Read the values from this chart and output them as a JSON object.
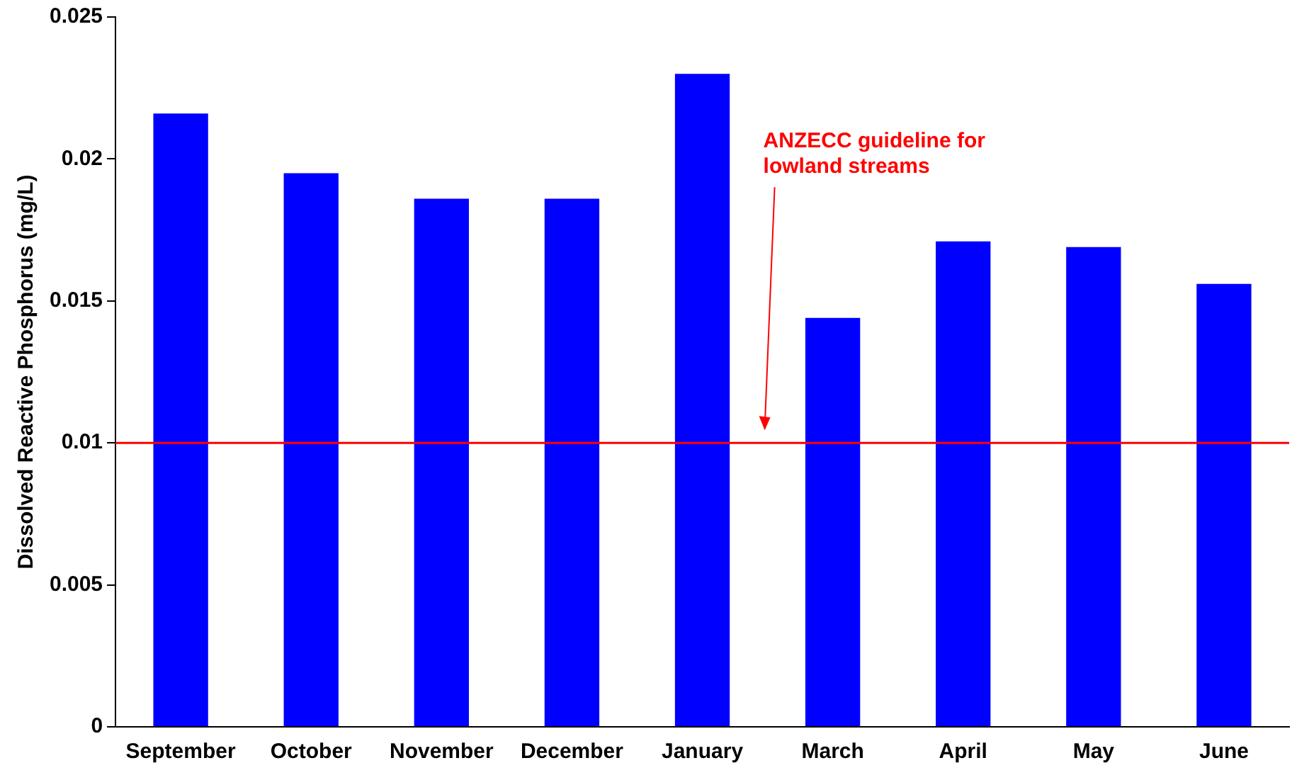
{
  "chart_data": {
    "type": "bar",
    "ylabel": "Dissolved Reactive Phosphorus (mg/L)",
    "categories": [
      "September",
      "October",
      "November",
      "December",
      "January",
      "March",
      "April",
      "May",
      "June"
    ],
    "values": [
      0.0216,
      0.0195,
      0.0186,
      0.0186,
      0.023,
      0.0144,
      0.0171,
      0.0169,
      0.0156
    ],
    "color": "#0000ff",
    "ylim": [
      0,
      0.025
    ],
    "yticks": [
      0,
      0.005,
      0.01,
      0.015,
      0.02,
      0.025
    ],
    "ref_lines": [
      {
        "axis": "y",
        "value": 0.01,
        "label": "ANZECC guideline for lowland streams",
        "color": "#ff0000"
      }
    ],
    "grid": false,
    "legend": false
  }
}
